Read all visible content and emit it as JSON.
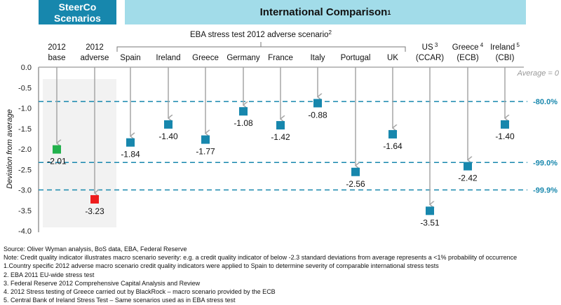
{
  "header": {
    "steerco_line1": "SteerCo",
    "steerco_line2": "Scenarios",
    "international": "International Comparison",
    "international_sup": "1"
  },
  "colors": {
    "steerco_bg": "#1787ad",
    "intl_bg": "#a2dce9",
    "marker_blue": "#1787ad",
    "marker_green": "#22b14c",
    "marker_red": "#ee1c1c",
    "threshold": "#1787ad"
  },
  "chart_data": {
    "type": "scatter",
    "ylabel": "Deviation from average",
    "ylim": [
      -4.0,
      0.0
    ],
    "yticks": [
      "0.0",
      "-0.5",
      "-1.0",
      "-1.5",
      "-2.0",
      "-2.5",
      "-3.0",
      "-3.5",
      "-4.0"
    ],
    "ytick_values": [
      0,
      -0.5,
      -1,
      -1.5,
      -2,
      -2.5,
      -3,
      -3.5,
      -4
    ],
    "group_label": "EBA stress test 2012 adverse scenario",
    "group_label_sup": "2",
    "average_label": "Average = 0",
    "categories": [
      {
        "line1": "2012",
        "line2": "base",
        "sup": "",
        "value": -2.01,
        "label": "-2.01",
        "color": "green"
      },
      {
        "line1": "2012",
        "line2": "adverse",
        "sup": "",
        "value": -3.23,
        "label": "-3.23",
        "color": "red"
      },
      {
        "line1": "",
        "line2": "Spain",
        "sup": "",
        "value": -1.84,
        "label": "-1.84",
        "color": "blue"
      },
      {
        "line1": "",
        "line2": "Ireland",
        "sup": "",
        "value": -1.4,
        "label": "-1.40",
        "color": "blue"
      },
      {
        "line1": "",
        "line2": "Greece",
        "sup": "",
        "value": -1.77,
        "label": "-1.77",
        "color": "blue"
      },
      {
        "line1": "",
        "line2": "Germany",
        "sup": "",
        "value": -1.08,
        "label": "-1.08",
        "color": "blue"
      },
      {
        "line1": "",
        "line2": "France",
        "sup": "",
        "value": -1.42,
        "label": "-1.42",
        "color": "blue"
      },
      {
        "line1": "",
        "line2": "Italy",
        "sup": "",
        "value": -0.88,
        "label": "-0.88",
        "color": "blue"
      },
      {
        "line1": "",
        "line2": "Portugal",
        "sup": "",
        "value": -2.56,
        "label": "-2.56",
        "color": "blue"
      },
      {
        "line1": "",
        "line2": "UK",
        "sup": "",
        "value": -1.64,
        "label": "-1.64",
        "color": "blue"
      },
      {
        "line1": "US",
        "line2": "(CCAR)",
        "sup": "3",
        "value": -3.51,
        "label": "-3.51",
        "color": "blue"
      },
      {
        "line1": "Greece",
        "line2": "(ECB)",
        "sup": "4",
        "value": -2.42,
        "label": "-2.42",
        "color": "blue"
      },
      {
        "line1": "Ireland",
        "line2": "(CBI)",
        "sup": "5",
        "value": -1.4,
        "label": "-1.40",
        "color": "blue"
      }
    ],
    "thresholds": [
      {
        "value": -0.84,
        "label": "-80.0%"
      },
      {
        "value": -2.33,
        "label": "-99.0%"
      },
      {
        "value": -3.0,
        "label": "-99.9%"
      }
    ]
  },
  "notes": [
    "Source: Oliver Wyman analysis, BoS data, EBA, Federal Reserve",
    "Note: Credit quality indicator illustrates macro scenario severity: e.g. a credit quality indicator of below -2.3 standard deviations from average represents a <1% probability of occurrence",
    "1.Country specific 2012 adverse macro scenario credit quality indicators were applied to Spain to determine severity of comparable international stress tests",
    "2. EBA 2011 EU-wide stress test",
    "3. Federal Reserve 2012 Comprehensive  Capital Analysis and Review",
    "4. 2012 Stress testing of Greece carried out by BlackRock – macro scenario provided  by the ECB",
    "5. Central Bank of Ireland Stress Test – Same scenarios used as in EBA stress test"
  ]
}
